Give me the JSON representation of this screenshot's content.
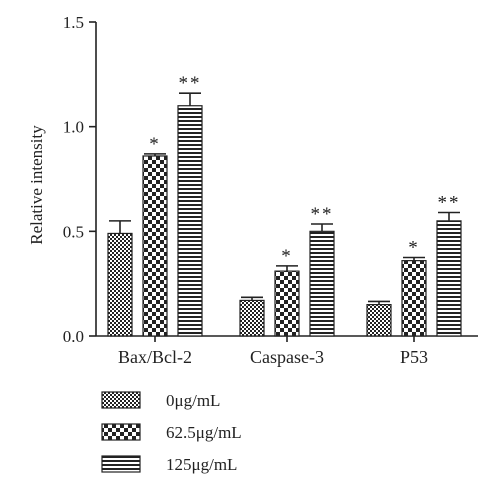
{
  "chart_data": {
    "type": "bar",
    "ylabel": "Relative intensity",
    "ylim": [
      0,
      1.5
    ],
    "yticks": [
      "0.0",
      "0.5",
      "1.0",
      "1.5"
    ],
    "categories": [
      "Bax/Bcl-2",
      "Caspase-3",
      "P53"
    ],
    "series": [
      {
        "name": "0μg/mL",
        "values": [
          0.49,
          0.17,
          0.15
        ],
        "errors": [
          0.06,
          0.015,
          0.015
        ],
        "labels": [
          "",
          "",
          ""
        ],
        "pattern": "fine-check"
      },
      {
        "name": "62.5μg/mL",
        "values": [
          0.86,
          0.31,
          0.36
        ],
        "errors": [
          0.01,
          0.025,
          0.015
        ],
        "labels": [
          "*",
          "*",
          "*"
        ],
        "pattern": "coarse-check"
      },
      {
        "name": "125μg/mL",
        "values": [
          1.1,
          0.5,
          0.55
        ],
        "errors": [
          0.06,
          0.035,
          0.04
        ],
        "labels": [
          "**",
          "**",
          "**"
        ],
        "pattern": "horizontal-stripes"
      }
    ],
    "legend_position": "bottom-left",
    "grid": false,
    "colors": {
      "axis": "#222222",
      "bar_fill": "#ffffff",
      "pattern_ink": "#222222"
    }
  }
}
